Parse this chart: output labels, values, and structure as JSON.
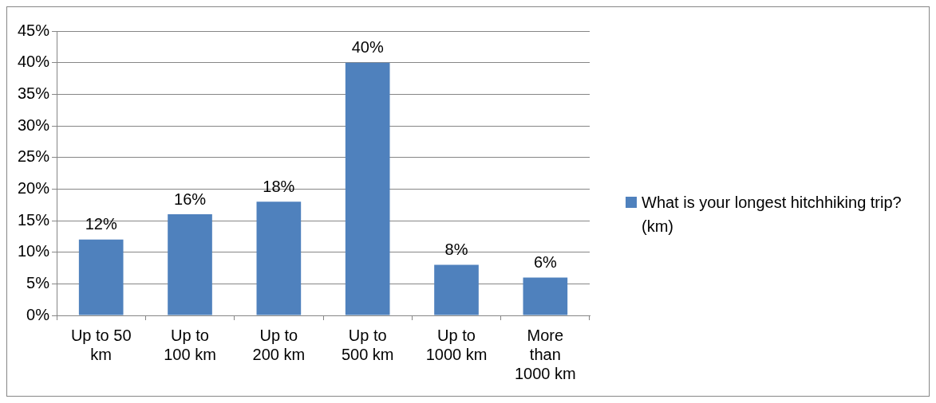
{
  "chart_data": {
    "type": "bar",
    "categories": [
      "Up to 50 km",
      "Up to 100 km",
      "Up to 200 km",
      "Up to 500 km",
      "Up to 1000 km",
      "More than 1000 km"
    ],
    "series": [
      {
        "name": "What is your longest hitchhiking trip? (km)",
        "color": "#4f81bd",
        "values": [
          12,
          16,
          18,
          40,
          8,
          6
        ],
        "value_labels": [
          "12%",
          "16%",
          "18%",
          "40%",
          "8%",
          "6%"
        ]
      }
    ],
    "ylim": [
      0,
      45
    ],
    "yticks": [
      {
        "value": 0,
        "label": "0%"
      },
      {
        "value": 5,
        "label": "5%"
      },
      {
        "value": 10,
        "label": "10%"
      },
      {
        "value": 15,
        "label": "15%"
      },
      {
        "value": 20,
        "label": "20%"
      },
      {
        "value": 25,
        "label": "25%"
      },
      {
        "value": 30,
        "label": "30%"
      },
      {
        "value": 35,
        "label": "35%"
      },
      {
        "value": 40,
        "label": "40%"
      },
      {
        "value": 45,
        "label": "45%"
      }
    ],
    "grid": "y",
    "legend": "right"
  }
}
